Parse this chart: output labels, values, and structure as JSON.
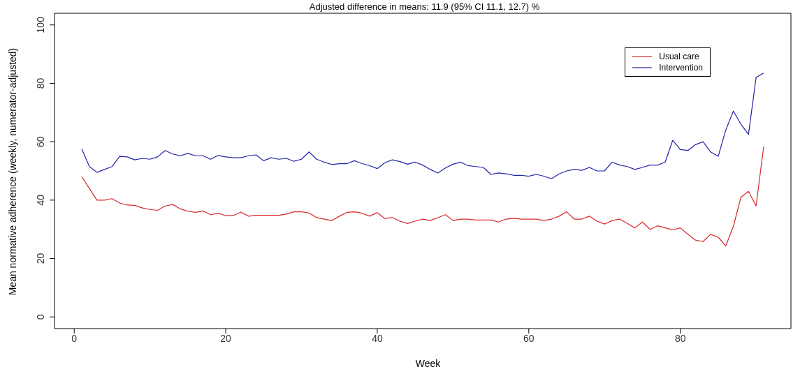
{
  "chart_data": {
    "type": "line",
    "title": "Adjusted difference in means: 11.9 (95% CI 11.1, 12.7) %",
    "xlabel": "Week",
    "ylabel": "Mean normative adherence (weekly, numerator-adjusted)",
    "x": [
      1,
      2,
      3,
      4,
      5,
      6,
      7,
      8,
      9,
      10,
      11,
      12,
      13,
      14,
      15,
      16,
      17,
      18,
      19,
      20,
      21,
      22,
      23,
      24,
      25,
      26,
      27,
      28,
      29,
      30,
      31,
      32,
      33,
      34,
      35,
      36,
      37,
      38,
      39,
      40,
      41,
      42,
      43,
      44,
      45,
      46,
      47,
      48,
      49,
      50,
      51,
      52,
      53,
      54,
      55,
      56,
      57,
      58,
      59,
      60,
      61,
      62,
      63,
      64,
      65,
      66,
      67,
      68,
      69,
      70,
      71,
      72,
      73,
      74,
      75,
      76,
      77,
      78,
      79,
      80,
      81,
      82,
      83,
      84,
      85,
      86,
      87,
      88,
      89,
      90,
      91
    ],
    "series": [
      {
        "name": "Usual care",
        "color": "#d62728",
        "values": [
          48,
          44,
          40,
          40,
          40.5,
          39,
          38.3,
          38.2,
          37.3,
          36.8,
          36.5,
          38,
          38.5,
          37,
          36.2,
          35.8,
          36.3,
          35,
          35.5,
          34.7,
          34.7,
          35.9,
          34.5,
          34.8,
          34.8,
          34.8,
          34.8,
          35.2,
          36,
          36,
          35.6,
          34,
          33.5,
          33,
          34.5,
          35.8,
          36,
          35.5,
          34.5,
          35.7,
          33.7,
          34,
          32.8,
          32,
          32.8,
          33.5,
          33,
          34,
          35,
          33,
          33.5,
          33.5,
          33.2,
          33.2,
          33.2,
          32.5,
          33.5,
          33.8,
          33.5,
          33.5,
          33.5,
          33,
          33.5,
          34.5,
          36,
          33.5,
          33.5,
          34.5,
          32.8,
          31.8,
          33,
          33.5,
          32,
          30.5,
          32.5,
          30,
          31.2,
          30.5,
          29.8,
          30.5,
          28.3,
          26.3,
          25.8,
          28.3,
          27.3,
          24.3,
          31,
          41,
          43,
          38,
          58.3
        ]
      },
      {
        "name": "Intervention",
        "color": "#2222aa",
        "values": [
          57.5,
          51.5,
          49.5,
          50.5,
          51.5,
          55,
          54.8,
          53.8,
          54.3,
          54,
          54.8,
          57,
          55.8,
          55.2,
          56,
          55.2,
          55.2,
          54,
          55.3,
          54.8,
          54.5,
          54.5,
          55.2,
          55.5,
          53.5,
          54.5,
          54,
          54.3,
          53.3,
          54,
          56.5,
          54,
          53,
          52.2,
          52.5,
          52.5,
          53.5,
          52.5,
          51.8,
          50.8,
          52.8,
          53.8,
          53.2,
          52.3,
          53,
          52,
          50.5,
          49.3,
          51,
          52.3,
          53,
          51.8,
          51.5,
          51.2,
          48.8,
          49.3,
          49,
          48.5,
          48.5,
          48.2,
          48.8,
          48.2,
          47.3,
          49,
          50,
          50.5,
          50.2,
          51.2,
          50,
          50,
          53,
          52,
          51.5,
          50.5,
          51.2,
          52,
          52,
          53,
          60.5,
          57.3,
          57,
          59,
          60,
          56.5,
          55,
          64,
          70.5,
          66,
          62.5,
          82,
          83.5
        ]
      }
    ],
    "xlim": [
      -2.6,
      94.6
    ],
    "xticks": [
      0,
      20,
      40,
      60,
      80
    ],
    "ylim": [
      -4,
      104
    ],
    "yticks": [
      0,
      20,
      40,
      60,
      80,
      100
    ],
    "legend": "top right",
    "grid": false,
    "marker": "none",
    "line_style": "solid"
  }
}
